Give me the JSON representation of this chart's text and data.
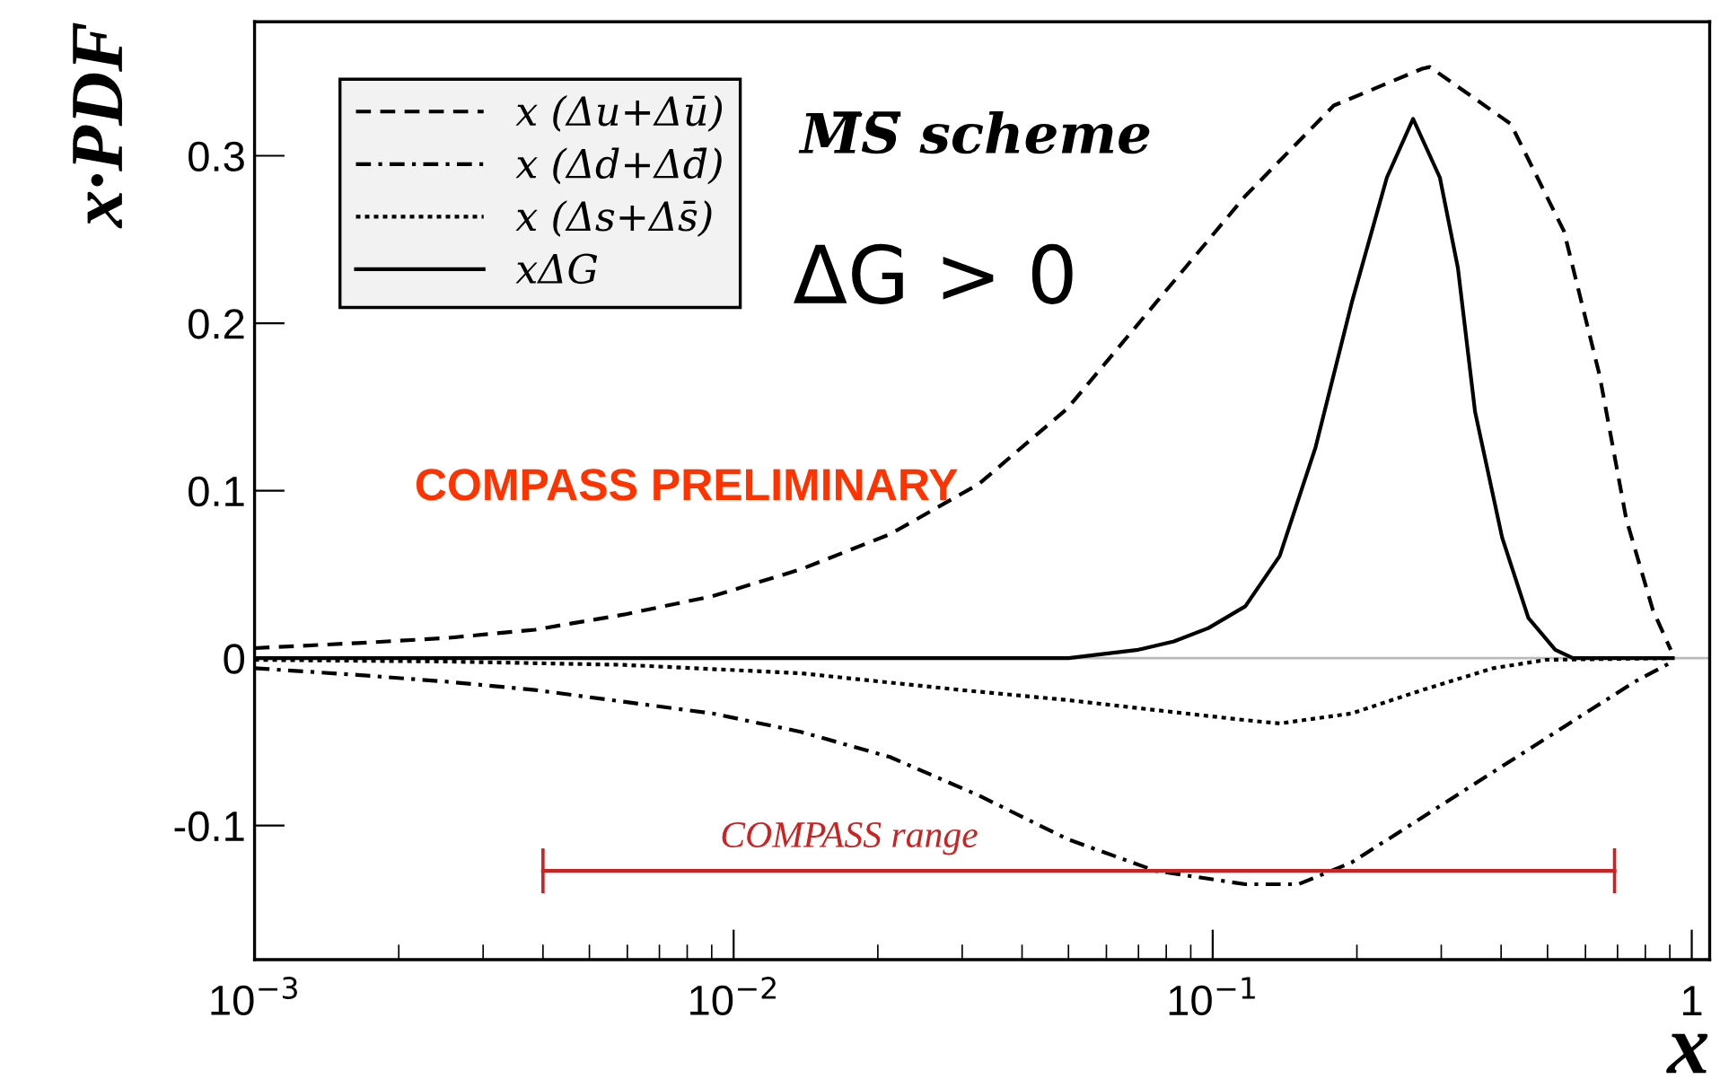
{
  "chart_data": {
    "type": "line",
    "xlabel": "x",
    "ylabel": "x·PDF",
    "log": "x",
    "legend": "top left",
    "grid": false,
    "xlim": [
      0.001,
      1.09
    ],
    "xticks": [
      {
        "value": 0.001,
        "label": "10$^{−3}$"
      },
      {
        "value": 0.01,
        "label": "10$^{−2}$"
      },
      {
        "value": 0.1,
        "label": "10$^{−1}$"
      },
      1
    ],
    "ylim": [
      -0.18,
      0.38
    ],
    "yticks": [
      -0.1,
      0,
      0.1,
      0.2,
      0.3
    ],
    "series": [
      {
        "name": "x (Δu+Δū)",
        "color": "#000000",
        "line_style": "dashed",
        "x": [
          0.001,
          0.00164,
          0.00251,
          0.00385,
          0.00589,
          0.00903,
          0.0138,
          0.0212,
          0.0325,
          0.0497,
          0.076,
          0.117,
          0.179,
          0.274,
          0.284,
          0.419,
          0.541,
          0.642,
          0.73,
          0.829,
          0.904
        ],
        "values": [
          0.006,
          0.009,
          0.012,
          0.017,
          0.026,
          0.037,
          0.053,
          0.074,
          0.104,
          0.149,
          0.212,
          0.276,
          0.33,
          0.352,
          0.353,
          0.319,
          0.255,
          0.169,
          0.083,
          0.029,
          0.005
        ]
      },
      {
        "name": "x (Δd+Δd̄)",
        "color": "#000000",
        "line_style": "dashdot",
        "x": [
          0.001,
          0.00164,
          0.00251,
          0.00385,
          0.00589,
          0.00903,
          0.0138,
          0.0212,
          0.0325,
          0.0497,
          0.076,
          0.117,
          0.151,
          0.195,
          0.274,
          0.385,
          0.541,
          0.761,
          0.913
        ],
        "values": [
          -0.006,
          -0.01,
          -0.014,
          -0.019,
          -0.026,
          -0.033,
          -0.044,
          -0.059,
          -0.082,
          -0.108,
          -0.127,
          -0.135,
          -0.135,
          -0.122,
          -0.095,
          -0.068,
          -0.041,
          -0.014,
          -0.002
        ]
      },
      {
        "name": "x (Δs+Δs̄)",
        "color": "#000000",
        "line_style": "dotted",
        "x": [
          0.001,
          0.00251,
          0.00589,
          0.0138,
          0.0298,
          0.0497,
          0.076,
          0.117,
          0.138,
          0.195,
          0.274,
          0.385,
          0.497,
          0.904
        ],
        "values": [
          -0.001,
          -0.002,
          -0.004,
          -0.009,
          -0.019,
          -0.025,
          -0.031,
          -0.037,
          -0.039,
          -0.033,
          -0.019,
          -0.006,
          -0.001,
          0
        ]
      },
      {
        "type": "line",
        "color": "#cc2222",
        "line_style": "solid",
        "x": [
          0.004,
          0.69
        ],
        "values": [
          -0.127,
          -0.127
        ]
      },
      {
        "name": "xΔG",
        "color": "#000000",
        "line_style": "solid",
        "x": [
          0.001,
          0.05,
          0.0699,
          0.083,
          0.098,
          0.117,
          0.138,
          0.164,
          0.195,
          0.231,
          0.262,
          0.298,
          0.325,
          0.353,
          0.402,
          0.456,
          0.519,
          0.565,
          0.913
        ],
        "values": [
          0,
          0,
          0.005,
          0.01,
          0.018,
          0.031,
          0.061,
          0.126,
          0.212,
          0.287,
          0.322,
          0.287,
          0.233,
          0.147,
          0.072,
          0.024,
          0.005,
          0,
          0
        ]
      }
    ],
    "ref_lines": [
      {
        "axis": "y",
        "value": 0,
        "color": "#bbbbbb"
      }
    ],
    "annotations": [
      "M̅S̅ scheme",
      "ΔG > 0",
      "COMPASS PRELIMINARY",
      "COMPASS range"
    ]
  }
}
